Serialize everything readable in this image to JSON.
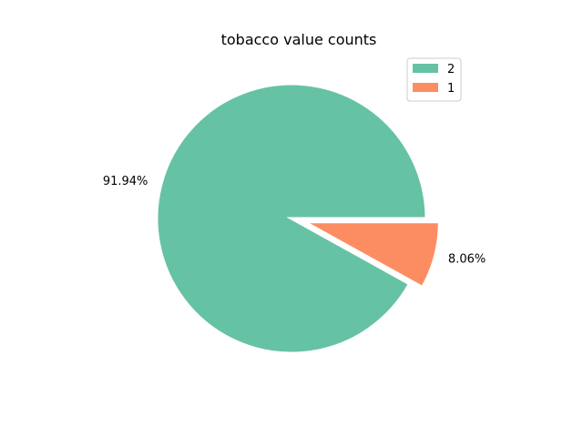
{
  "chart_data": {
    "type": "pie",
    "title": "tobacco value counts",
    "legend_position": "top-right",
    "slices": [
      {
        "label": "2",
        "percent": 91.94,
        "percent_label": "91.94%",
        "color": "#66c2a5",
        "explode": false
      },
      {
        "label": "1",
        "percent": 8.06,
        "percent_label": "8.06%",
        "color": "#fc8d62",
        "explode": true
      }
    ]
  }
}
